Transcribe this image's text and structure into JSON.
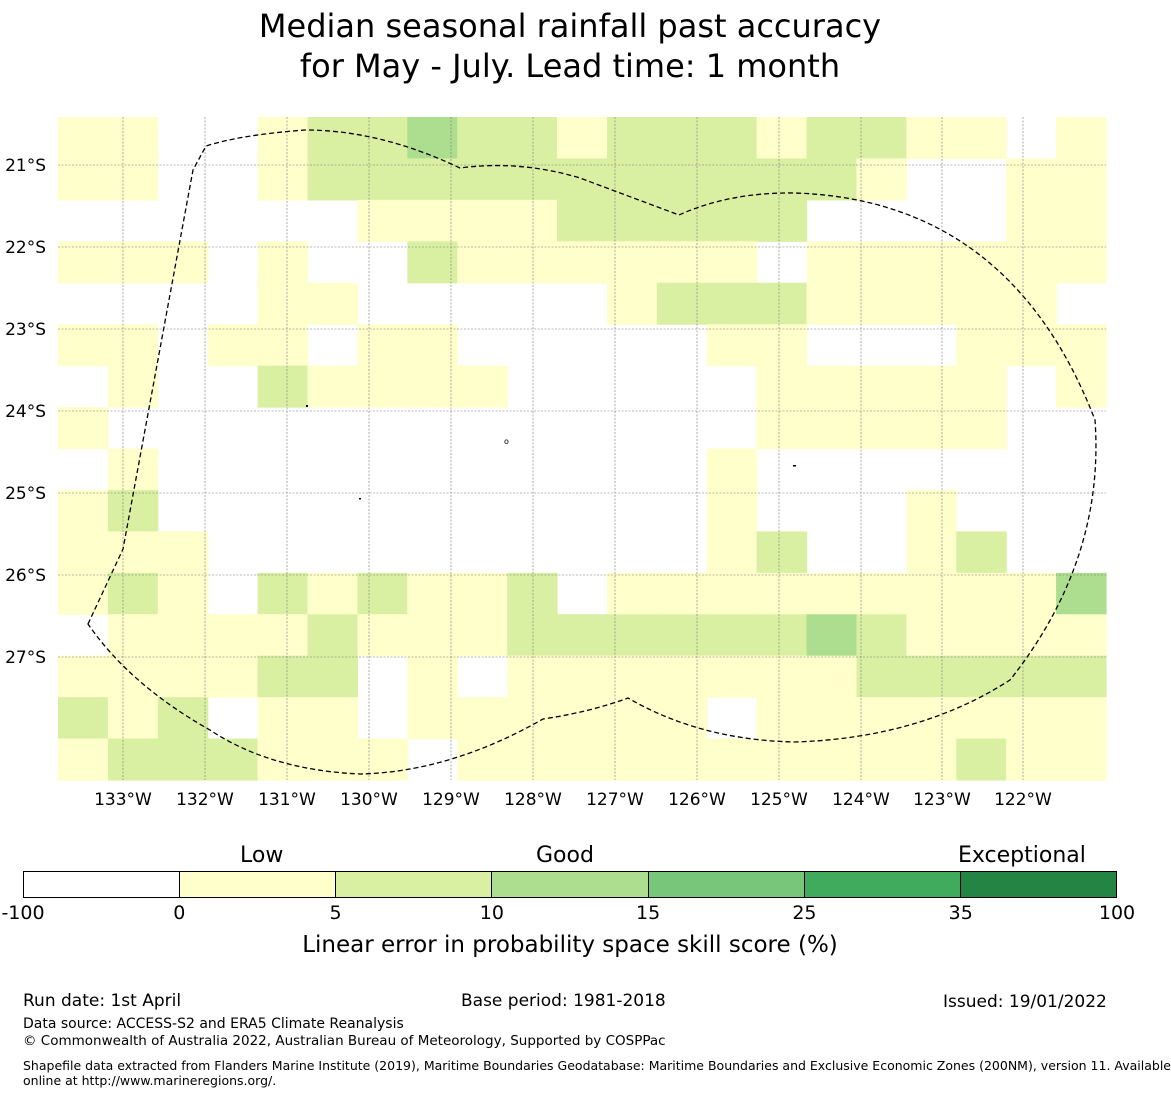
{
  "title": {
    "line1": "Median seasonal rainfall past accuracy",
    "line2": "for May - July. Lead time: 1 month"
  },
  "map": {
    "lon_ticks": [
      "133°W",
      "132°W",
      "131°W",
      "130°W",
      "129°W",
      "128°W",
      "127°W",
      "126°W",
      "125°W",
      "124°W",
      "123°W",
      "122°W"
    ],
    "lat_ticks": [
      "21°S",
      "22°S",
      "23°S",
      "24°S",
      "25°S",
      "26°S",
      "27°S"
    ],
    "cell_classes": [
      [
        1,
        1,
        0,
        0,
        1,
        2,
        2,
        3,
        2,
        2,
        1,
        2,
        2,
        2,
        1,
        2,
        2,
        1,
        1,
        0,
        1
      ],
      [
        1,
        1,
        0,
        0,
        1,
        2,
        2,
        2,
        2,
        2,
        2,
        2,
        2,
        2,
        2,
        2,
        1,
        0,
        0,
        1,
        1
      ],
      [
        0,
        0,
        0,
        0,
        0,
        0,
        1,
        1,
        1,
        1,
        2,
        2,
        2,
        2,
        2,
        0,
        0,
        0,
        0,
        1,
        1
      ],
      [
        1,
        1,
        1,
        0,
        1,
        0,
        0,
        2,
        1,
        1,
        1,
        1,
        1,
        1,
        0,
        1,
        1,
        1,
        1,
        1,
        1
      ],
      [
        0,
        0,
        0,
        0,
        1,
        1,
        0,
        0,
        0,
        0,
        0,
        1,
        2,
        2,
        2,
        1,
        1,
        1,
        1,
        1,
        0
      ],
      [
        1,
        1,
        0,
        1,
        1,
        0,
        1,
        1,
        0,
        0,
        0,
        0,
        0,
        1,
        1,
        0,
        0,
        0,
        1,
        1,
        1
      ],
      [
        0,
        1,
        0,
        0,
        2,
        1,
        1,
        1,
        1,
        0,
        0,
        0,
        0,
        0,
        1,
        1,
        1,
        1,
        1,
        0,
        1
      ],
      [
        1,
        0,
        0,
        0,
        0,
        0,
        0,
        0,
        0,
        0,
        0,
        0,
        0,
        0,
        1,
        1,
        1,
        1,
        1,
        0,
        0
      ],
      [
        0,
        1,
        0,
        0,
        0,
        0,
        0,
        0,
        0,
        0,
        0,
        0,
        0,
        1,
        0,
        0,
        0,
        0,
        0,
        0,
        0
      ],
      [
        1,
        2,
        0,
        0,
        0,
        0,
        0,
        0,
        0,
        0,
        0,
        0,
        0,
        1,
        0,
        0,
        0,
        1,
        0,
        0,
        0
      ],
      [
        1,
        1,
        1,
        0,
        0,
        0,
        0,
        0,
        0,
        0,
        0,
        0,
        0,
        1,
        2,
        0,
        0,
        1,
        2,
        0,
        0
      ],
      [
        1,
        2,
        1,
        0,
        2,
        1,
        2,
        1,
        1,
        2,
        0,
        1,
        1,
        1,
        1,
        1,
        1,
        1,
        1,
        1,
        3
      ],
      [
        0,
        1,
        1,
        1,
        1,
        2,
        1,
        1,
        1,
        2,
        2,
        2,
        2,
        2,
        2,
        3,
        2,
        1,
        1,
        1,
        1
      ],
      [
        1,
        1,
        1,
        1,
        2,
        2,
        0,
        1,
        0,
        1,
        1,
        1,
        1,
        1,
        1,
        1,
        2,
        2,
        2,
        2,
        2
      ],
      [
        2,
        1,
        2,
        0,
        1,
        1,
        0,
        1,
        1,
        1,
        1,
        1,
        1,
        0,
        1,
        1,
        1,
        1,
        1,
        1,
        1
      ],
      [
        1,
        2,
        2,
        2,
        1,
        1,
        1,
        0,
        1,
        1,
        1,
        1,
        1,
        1,
        1,
        1,
        1,
        1,
        2,
        1,
        1
      ]
    ]
  },
  "colorbar": {
    "top_labels": [
      "Low",
      "Good",
      "Exceptional"
    ],
    "tick_labels": [
      "-100",
      "0",
      "5",
      "10",
      "15",
      "25",
      "35",
      "100"
    ],
    "colors": [
      "#ffffff",
      "#ffffcc",
      "#d9f0a3",
      "#addd8e",
      "#78c679",
      "#41ab5d",
      "#238443"
    ],
    "caption": "Linear error in probability space skill score (%)"
  },
  "footer": {
    "run_date": "Run date: 1st April",
    "base_period": "Base period: 1981-2018",
    "issued": "Issued: 19/01/2022",
    "data_source": "Data source: ACCESS-S2 and ERA5 Climate Reanalysis",
    "copyright": "© Commonwealth of Australia 2022, Australian Bureau of Meteorology, Supported by COSPPac",
    "shapefile_line1": "Shapefile data extracted from Flanders Marine Institute (2019), Maritime Boundaries Geodatabase: Maritime Boundaries and Exclusive Economic Zones (200NM), version 11. Available",
    "shapefile_line2": "online at http://www.marineregions.org/."
  }
}
